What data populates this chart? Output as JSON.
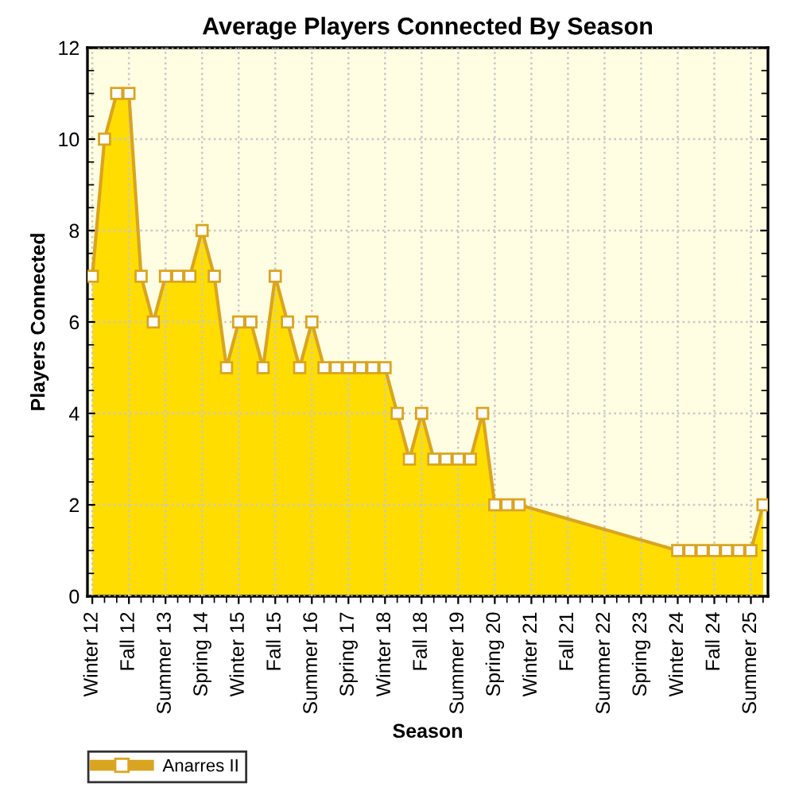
{
  "chart_data": {
    "type": "area",
    "title": "Average Players Connected By Season",
    "xlabel": "Season",
    "ylabel": "Players Connected",
    "categories": [
      "Winter 12",
      null,
      null,
      "Fall 12",
      null,
      null,
      "Summer 13",
      null,
      null,
      "Spring 14",
      null,
      null,
      "Winter 15",
      null,
      null,
      "Fall 15",
      null,
      null,
      "Summer 16",
      null,
      null,
      "Spring 17",
      null,
      null,
      "Winter 18",
      null,
      null,
      "Fall 18",
      null,
      null,
      "Summer 19",
      null,
      null,
      "Spring 20",
      null,
      null,
      "Winter 21",
      null,
      null,
      "Fall 21",
      null,
      null,
      "Summer 22",
      null,
      null,
      "Spring 23",
      null,
      null,
      "Winter 24",
      null,
      null,
      "Fall 24",
      null,
      null,
      "Summer 25",
      null
    ],
    "series": [
      {
        "name": "Anarres II",
        "color": "#ffdd00",
        "values": [
          7,
          10,
          11,
          11,
          7,
          6,
          7,
          7,
          7,
          8,
          7,
          5,
          6,
          6,
          5,
          7,
          6,
          5,
          6,
          5,
          5,
          5,
          5,
          5,
          5,
          4,
          3,
          4,
          3,
          3,
          3,
          3,
          4,
          2,
          2,
          2,
          null,
          null,
          null,
          null,
          null,
          null,
          null,
          null,
          null,
          null,
          null,
          null,
          1,
          1,
          1,
          1,
          1,
          1,
          1,
          2
        ]
      }
    ],
    "ylim": [
      0,
      12
    ],
    "yticks": [
      0,
      2,
      4,
      6,
      8,
      10,
      12
    ],
    "grid": true,
    "legend": "bottom left",
    "marker": "square",
    "line_style": "solid"
  }
}
